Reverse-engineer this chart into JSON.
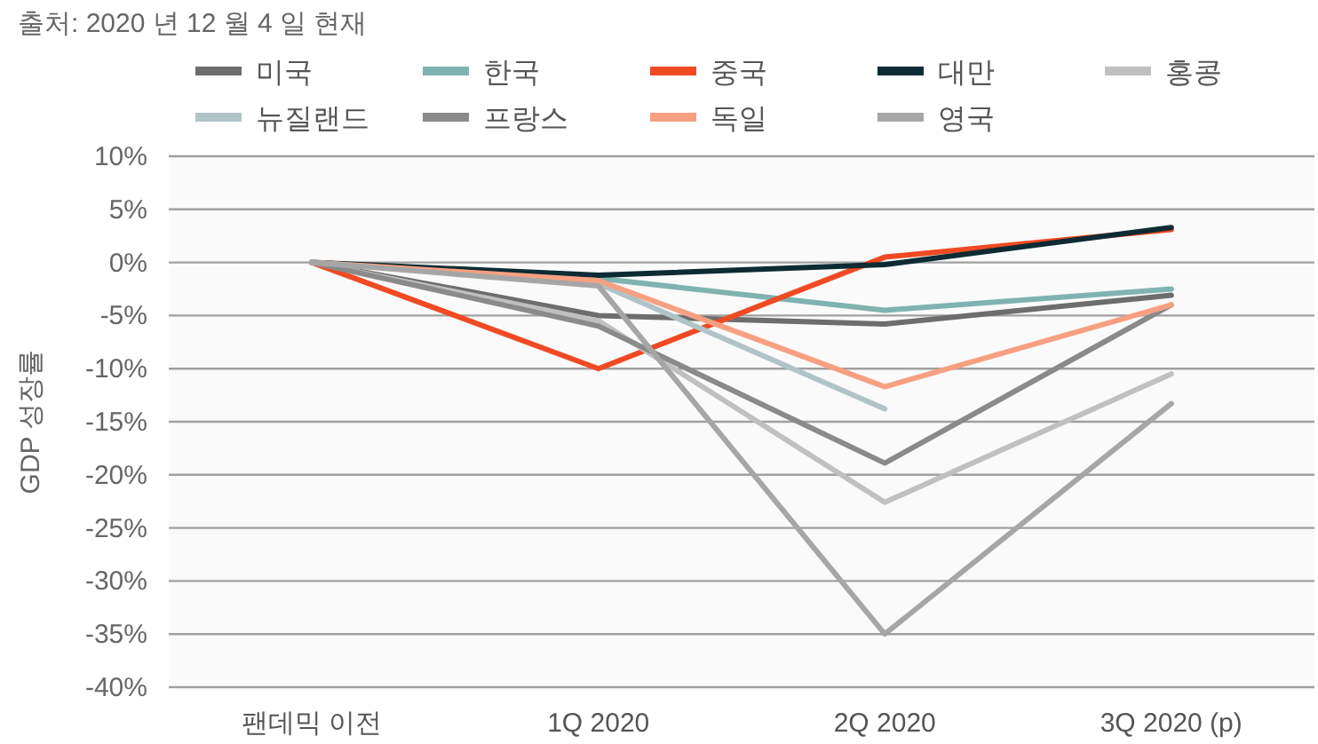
{
  "chart_data": {
    "type": "line",
    "annotations": [
      "출처: 2020 년 12 월 4 일 현재"
    ],
    "ylabel": "GDP 성장률",
    "categories": [
      "팬데믹 이전",
      "1Q 2020",
      "2Q 2020",
      "3Q 2020 (p)"
    ],
    "series": [
      {
        "name": "미국",
        "color": "#6d6d6d",
        "values": [
          0,
          -5.0,
          -5.8,
          -3.1
        ]
      },
      {
        "name": "한국",
        "color": "#7fb3b0",
        "values": [
          0,
          -1.5,
          -4.5,
          -2.5
        ]
      },
      {
        "name": "중국",
        "color": "#f04a23",
        "values": [
          0,
          -10.0,
          0.5,
          3.1
        ]
      },
      {
        "name": "대만",
        "color": "#0d2b33",
        "values": [
          0,
          -1.2,
          -0.2,
          3.3
        ]
      },
      {
        "name": "홍콩",
        "color": "#c0c0c0",
        "values": [
          0,
          -5.5,
          -22.6,
          -10.5
        ]
      },
      {
        "name": "뉴질랜드",
        "color": "#b0c4c8",
        "values": [
          0,
          -2.0,
          -13.8,
          null
        ]
      },
      {
        "name": "프랑스",
        "color": "#8a8a8a",
        "values": [
          0,
          -6.0,
          -18.9,
          -4.0
        ]
      },
      {
        "name": "독일",
        "color": "#f7a081",
        "values": [
          0,
          -1.7,
          -11.7,
          -4.0
        ]
      },
      {
        "name": "영국",
        "color": "#a6a6a6",
        "values": [
          0,
          -2.2,
          -35.0,
          -13.3
        ]
      }
    ],
    "ylim": [
      -40,
      10
    ],
    "yticks": [
      {
        "value": 10,
        "label": "10%"
      },
      {
        "value": 5,
        "label": "5%"
      },
      {
        "value": 0,
        "label": "0%"
      },
      {
        "value": -5,
        "label": "-5%"
      },
      {
        "value": -10,
        "label": "-10%"
      },
      {
        "value": -15,
        "label": "-15%"
      },
      {
        "value": -20,
        "label": "-20%"
      },
      {
        "value": -25,
        "label": "-25%"
      },
      {
        "value": -30,
        "label": "-30%"
      },
      {
        "value": -35,
        "label": "-35%"
      },
      {
        "value": -40,
        "label": "-40%"
      }
    ],
    "grid": "y",
    "legend": "top",
    "marker": "none",
    "line_style": "solid"
  }
}
